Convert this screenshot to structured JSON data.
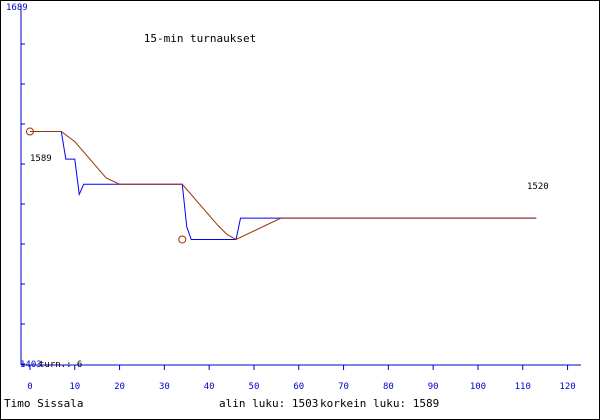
{
  "chart_data": {
    "type": "line",
    "title": "15-min turnaukset",
    "xlabel": "",
    "ylabel": "",
    "xlim": [
      -2,
      123
    ],
    "ylim": [
      1403,
      1689
    ],
    "y_top_label": "1689",
    "y_bottom_label": "1403",
    "y_bottom_suffix": " turn.: 6",
    "x_ticks": [
      0,
      10,
      20,
      30,
      40,
      50,
      60,
      70,
      80,
      90,
      100,
      110,
      120
    ],
    "colors": {
      "axis": "#0000cc",
      "blue_series": "#0000ff",
      "red_series": "#993300",
      "text": "#000000"
    },
    "series": [
      {
        "color": "#0000ff",
        "points": [
          [
            0,
            1589
          ],
          [
            7,
            1589
          ],
          [
            8,
            1567
          ],
          [
            10,
            1567
          ],
          [
            11,
            1539
          ],
          [
            12,
            1547
          ],
          [
            19,
            1547
          ],
          [
            20,
            1547
          ],
          [
            34,
            1547
          ],
          [
            35,
            1513
          ],
          [
            36,
            1503
          ],
          [
            46,
            1503
          ],
          [
            47,
            1520
          ],
          [
            52,
            1520
          ],
          [
            56,
            1520
          ],
          [
            113,
            1520
          ]
        ]
      },
      {
        "color": "#993300",
        "points": [
          [
            0,
            1589
          ],
          [
            7,
            1589
          ],
          [
            10,
            1581
          ],
          [
            17,
            1552
          ],
          [
            20,
            1547
          ],
          [
            34,
            1547
          ],
          [
            42,
            1514
          ],
          [
            44,
            1507
          ],
          [
            46,
            1503
          ],
          [
            56,
            1520
          ],
          [
            113,
            1520
          ]
        ]
      }
    ],
    "markers": [
      [
        0,
        1589
      ],
      [
        34,
        1503
      ]
    ],
    "annotations": {
      "start_value": "1589",
      "end_value": "1520"
    }
  },
  "footer": {
    "author": "Timo Sissala",
    "low_label": "alin luku: 1503",
    "high_label": "korkein luku: 1589"
  }
}
